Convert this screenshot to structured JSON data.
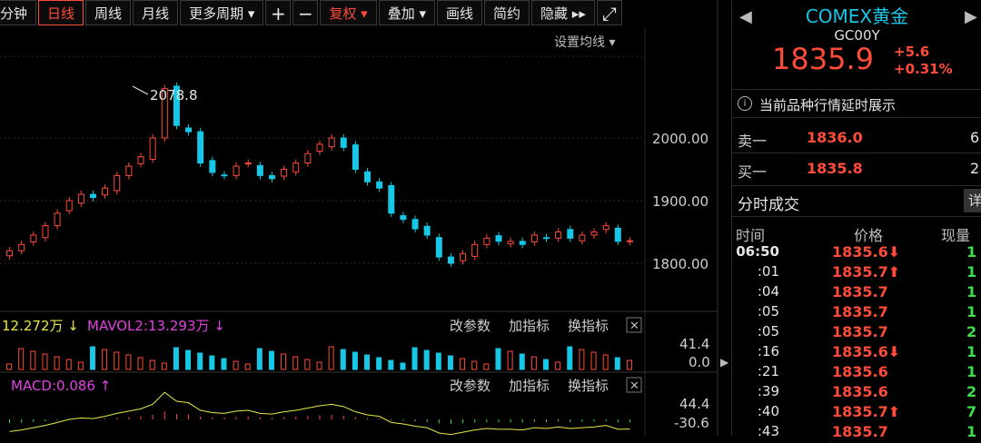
{
  "toolbar": {
    "items": [
      "分钟",
      "日线",
      "周线",
      "月线",
      "更多周期 ▾",
      "+",
      "−",
      "复权 ▾",
      "叠加 ▾",
      "画线",
      "简约",
      "隐藏 ▸▸",
      "⤢"
    ],
    "active": "日线",
    "red": "复权 ▾"
  },
  "chart_panel": {
    "set_ma_label": "设置均线 ▾",
    "peak_label": "2078.8",
    "y_axis_labels": [
      "2000.00",
      "1900.00",
      "1800.00"
    ],
    "vol_legend_a": "12.272万 ↓",
    "vol_legend_b": "MAVOL2:13.293万 ↓",
    "vol_axis": [
      "41.4",
      "0.0"
    ],
    "macd_legend": "MACD:0.086 ↑",
    "macd_axis": [
      "44.4",
      "-30.6"
    ],
    "pane_buttons": [
      "改参数",
      "加指标",
      "换指标",
      "✕"
    ]
  },
  "chart_data": {
    "type": "candlestick",
    "approx_series_close": [
      1820,
      1830,
      1845,
      1860,
      1880,
      1900,
      1910,
      1905,
      1920,
      1940,
      1955,
      1970,
      2000,
      2078.8,
      2020,
      2010,
      1960,
      1945,
      1940,
      1955,
      1960,
      1940,
      1935,
      1950,
      1960,
      1975,
      1990,
      2000,
      1985,
      1950,
      1930,
      1920,
      1880,
      1870,
      1855,
      1845,
      1810,
      1800,
      1815,
      1830,
      1840,
      1835,
      1835,
      1830,
      1845,
      1840,
      1850,
      1840,
      1845,
      1850,
      1860,
      1835,
      1835.9
    ]
  },
  "quote": {
    "title": "COMEX黄金",
    "code": "GC00Y",
    "price": "1835.9",
    "change": "+5.6",
    "change_pct": "+0.31%",
    "notice": "当前品种行情延时展示",
    "sell_label": "卖一",
    "sell_price": "1836.0",
    "sell_vol": "6",
    "buy_label": "买一",
    "buy_price": "1835.8",
    "buy_vol": "2"
  },
  "ticks": {
    "title": "分时成交",
    "detail": "详",
    "col_time": "时间",
    "col_price": "价格",
    "col_qty": "现量",
    "rows": [
      {
        "time": "06:50",
        "price": "1835.6⬇",
        "qty": "1"
      },
      {
        "time": ":01",
        "price": "1835.7⬆",
        "qty": "1"
      },
      {
        "time": ":04",
        "price": "1835.7",
        "qty": "1"
      },
      {
        "time": ":05",
        "price": "1835.7",
        "qty": "1"
      },
      {
        "time": ":05",
        "price": "1835.7",
        "qty": "2"
      },
      {
        "time": ":16",
        "price": "1835.6⬇",
        "qty": "1"
      },
      {
        "time": ":21",
        "price": "1835.6",
        "qty": "1"
      },
      {
        "time": ":39",
        "price": "1835.6",
        "qty": "2"
      },
      {
        "time": ":40",
        "price": "1835.7⬆",
        "qty": "7"
      },
      {
        "time": ":43",
        "price": "1835.7",
        "qty": "1"
      }
    ]
  }
}
